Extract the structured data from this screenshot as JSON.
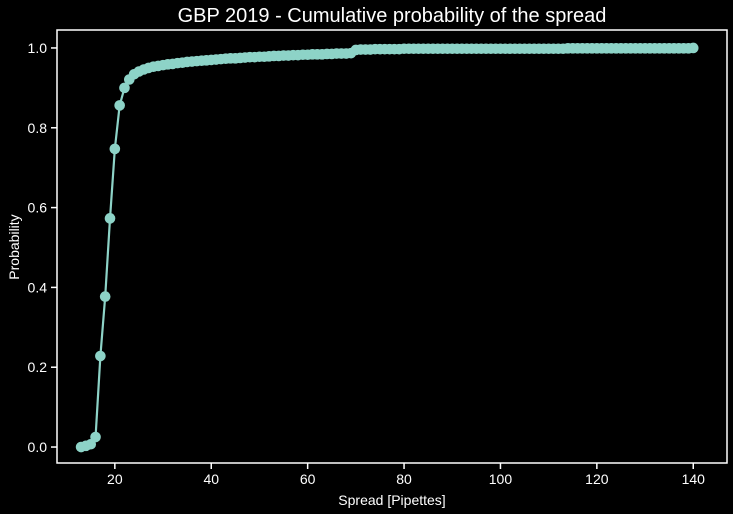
{
  "chart_data": {
    "type": "line",
    "title": "GBP 2019 - Cumulative probability of the spread",
    "xlabel": "Spread [Pipettes]",
    "ylabel": "Probability",
    "xlim": [
      8,
      147
    ],
    "ylim": [
      -0.04,
      1.045
    ],
    "xticks": [
      "20",
      "40",
      "60",
      "80",
      "100",
      "120",
      "140"
    ],
    "yticks": [
      "0.0",
      "0.2",
      "0.4",
      "0.6",
      "0.8",
      "1.0"
    ],
    "grid": false,
    "legend": "none",
    "colors": {
      "background": "#000000",
      "axes": "#ffffff",
      "line": "#8dd3c7",
      "text": "#ffffff"
    },
    "series": [
      {
        "x": [
          13,
          14,
          15,
          16,
          17,
          18,
          19,
          20,
          21,
          22,
          23,
          24,
          25,
          26,
          27,
          28,
          29,
          30,
          31,
          32,
          33,
          34,
          35,
          36,
          37,
          38,
          39,
          40,
          41,
          42,
          43,
          44,
          45,
          46,
          47,
          48,
          49,
          50,
          51,
          52,
          53,
          54,
          55,
          56,
          57,
          58,
          59,
          60,
          61,
          62,
          63,
          64,
          65,
          66,
          67,
          68,
          69,
          70,
          71,
          72,
          73,
          74,
          75,
          76,
          77,
          78,
          79,
          80,
          81,
          82,
          83,
          84,
          85,
          86,
          87,
          88,
          89,
          90,
          91,
          92,
          93,
          94,
          95,
          96,
          97,
          98,
          99,
          100,
          101,
          102,
          103,
          104,
          105,
          106,
          107,
          108,
          109,
          110,
          111,
          112,
          113,
          114,
          115,
          116,
          117,
          118,
          119,
          120,
          121,
          122,
          123,
          124,
          125,
          126,
          127,
          128,
          129,
          130,
          131,
          132,
          133,
          134,
          135,
          136,
          137,
          138,
          139,
          140
        ],
        "values": [
          0.0,
          0.003,
          0.007,
          0.025,
          0.228,
          0.377,
          0.573,
          0.747,
          0.856,
          0.9,
          0.921,
          0.934,
          0.941,
          0.946,
          0.95,
          0.953,
          0.955,
          0.957,
          0.959,
          0.96,
          0.962,
          0.963,
          0.965,
          0.966,
          0.967,
          0.968,
          0.969,
          0.97,
          0.971,
          0.972,
          0.973,
          0.974,
          0.974,
          0.975,
          0.976,
          0.977,
          0.977,
          0.978,
          0.978,
          0.979,
          0.98,
          0.98,
          0.981,
          0.981,
          0.982,
          0.982,
          0.983,
          0.983,
          0.984,
          0.984,
          0.984,
          0.985,
          0.985,
          0.986,
          0.986,
          0.986,
          0.987,
          0.995,
          0.996,
          0.996,
          0.996,
          0.997,
          0.997,
          0.997,
          0.997,
          0.997,
          0.997,
          0.998,
          0.998,
          0.998,
          0.998,
          0.998,
          0.998,
          0.998,
          0.998,
          0.998,
          0.998,
          0.998,
          0.998,
          0.998,
          0.998,
          0.998,
          0.998,
          0.998,
          0.998,
          0.998,
          0.998,
          0.998,
          0.998,
          0.998,
          0.998,
          0.998,
          0.998,
          0.998,
          0.998,
          0.998,
          0.998,
          0.998,
          0.998,
          0.998,
          0.998,
          0.999,
          0.999,
          0.999,
          0.999,
          0.999,
          0.999,
          0.999,
          0.999,
          0.999,
          0.999,
          0.999,
          0.999,
          0.999,
          0.999,
          0.999,
          0.999,
          0.999,
          0.999,
          0.999,
          0.999,
          0.999,
          0.999,
          0.999,
          0.999,
          0.999,
          0.999,
          1.0
        ]
      }
    ]
  }
}
